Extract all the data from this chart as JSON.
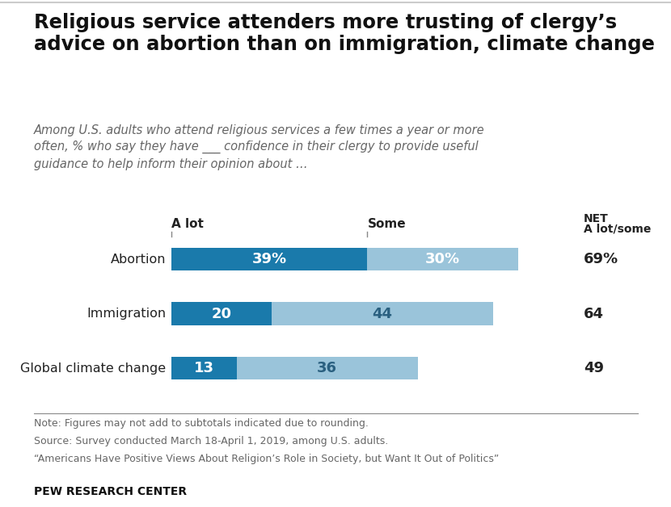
{
  "title": "Religious service attenders more trusting of clergy’s\nadvice on abortion than on immigration, climate change",
  "subtitle": "Among U.S. adults who attend religious services a few times a year or more\noften, % who say they have ___ confidence in their clergy to provide useful\nguidance to help inform their opinion about …",
  "categories": [
    "Abortion",
    "Immigration",
    "Global climate change"
  ],
  "alot_values": [
    39,
    20,
    13
  ],
  "some_values": [
    30,
    44,
    36
  ],
  "net_values": [
    "69%",
    "64",
    "49"
  ],
  "alot_color": "#1a7aab",
  "some_color": "#9ac4da",
  "alot_label": "A lot",
  "some_label": "Some",
  "net_label_top": "NET",
  "net_label_bottom": "A lot/some",
  "note_line1": "Note: Figures may not add to subtotals indicated due to rounding.",
  "note_line2": "Source: Survey conducted March 18-April 1, 2019, among U.S. adults.",
  "note_line3": "“Americans Have Positive Views About Religion’s Role in Society, but Want It Out of Politics”",
  "footer": "PEW RESEARCH CENTER",
  "background_color": "#ffffff",
  "bar_height": 0.42,
  "xlim": [
    0,
    80
  ],
  "text_color_dark": "#222222",
  "text_color_note": "#666666",
  "header_tick_color": "#888888",
  "some_text_color": "#2a6080"
}
